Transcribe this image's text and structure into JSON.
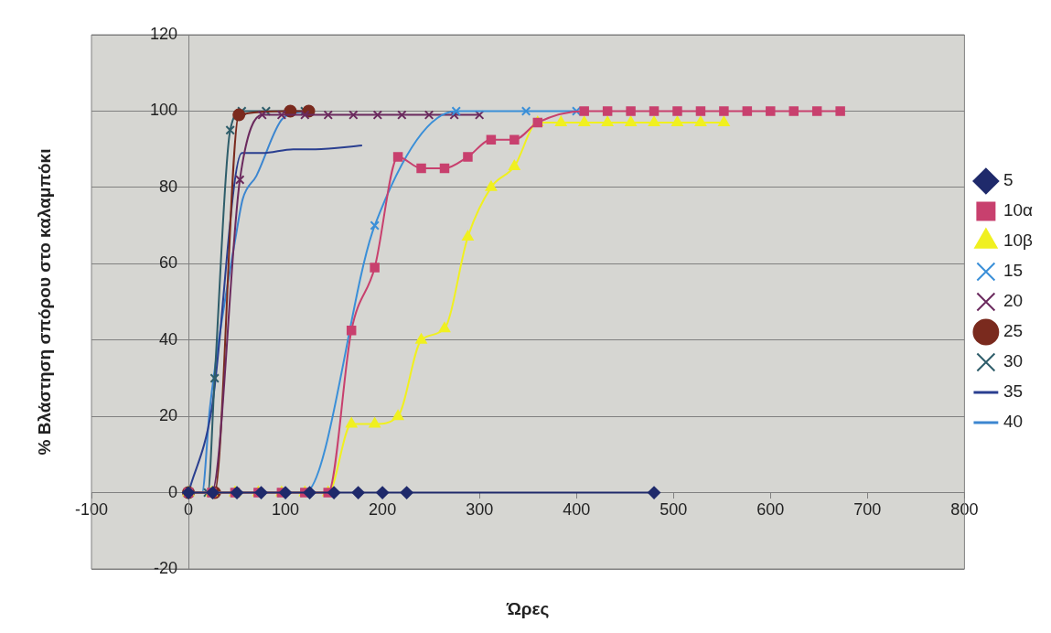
{
  "chart_data": {
    "type": "line",
    "xlabel": "Ώρες",
    "ylabel": "% Βλάστηση σπόρου στο καλαμπόκι",
    "xlim": [
      -100,
      800
    ],
    "xticks": [
      -100,
      0,
      100,
      200,
      300,
      400,
      500,
      600,
      700,
      800
    ],
    "ylim": [
      -20,
      120
    ],
    "yticks": [
      -20,
      0,
      20,
      40,
      60,
      80,
      100,
      120
    ],
    "grid": "y",
    "legend": "right",
    "series": [
      {
        "name": "5",
        "color": "#1f2a6b",
        "marker": "diamond",
        "x": [
          0,
          25,
          50,
          75,
          100,
          125,
          150,
          175,
          200,
          225,
          480
        ],
        "values": [
          0,
          0,
          0,
          0,
          0,
          0,
          0,
          0,
          0,
          0,
          0
        ]
      },
      {
        "name": "10α",
        "color": "#c8406e",
        "marker": "square",
        "x": [
          0,
          24,
          48,
          72,
          96,
          120,
          144,
          168,
          192,
          216,
          240,
          264,
          288,
          312,
          336,
          360,
          408,
          432,
          456,
          480,
          504,
          528,
          552,
          576,
          600,
          624,
          648,
          672
        ],
        "values": [
          0,
          0,
          0,
          0,
          0,
          0,
          0,
          42.5,
          59,
          88,
          85,
          85,
          88,
          92.5,
          92.5,
          97,
          100,
          100,
          100,
          100,
          100,
          100,
          100,
          100,
          100,
          100,
          100,
          100
        ]
      },
      {
        "name": "10β",
        "color": "#f0f020",
        "marker": "triangle",
        "x": [
          0,
          24,
          48,
          72,
          96,
          120,
          144,
          168,
          192,
          216,
          240,
          264,
          288,
          312,
          336,
          360,
          384,
          408,
          432,
          456,
          480,
          504,
          528,
          552
        ],
        "values": [
          0,
          0,
          0,
          0,
          0,
          0,
          0,
          18,
          18,
          20,
          40,
          43,
          67,
          80,
          85.5,
          97,
          97,
          97,
          97,
          97,
          97,
          97,
          97,
          97
        ]
      },
      {
        "name": "15",
        "color": "#3a8fd8",
        "marker": "cross",
        "x": [
          0,
          24,
          48,
          72,
          96,
          120,
          192,
          276,
          348,
          400
        ],
        "values": [
          0,
          0,
          0,
          0,
          0,
          0,
          70,
          100,
          100,
          100
        ]
      },
      {
        "name": "20",
        "color": "#6b2a5e",
        "marker": "cross",
        "x": [
          0,
          24,
          53,
          76,
          96,
          120,
          144,
          170,
          195,
          220,
          248,
          274,
          300
        ],
        "values": [
          0,
          0,
          82,
          99,
          99,
          99,
          99,
          99,
          99,
          99,
          99,
          99,
          99
        ]
      },
      {
        "name": "25",
        "color": "#7a2a1e",
        "marker": "circle",
        "x": [
          0,
          27,
          52,
          105,
          124
        ],
        "values": [
          0,
          0,
          99,
          100,
          100
        ]
      },
      {
        "name": "30",
        "color": "#2e5d6a",
        "marker": "cross",
        "x": [
          0,
          20,
          27,
          43,
          55,
          80,
          120
        ],
        "values": [
          0,
          0,
          30,
          95,
          100,
          100,
          100
        ]
      },
      {
        "name": "35",
        "color": "#2a3f90",
        "marker": "none",
        "x": [
          0,
          24,
          55,
          76,
          108,
          131,
          179
        ],
        "values": [
          0,
          22,
          89,
          89,
          90,
          90,
          91
        ]
      },
      {
        "name": "40",
        "color": "#3c86d0",
        "marker": "none",
        "x": [
          0,
          14,
          22,
          50,
          56,
          70,
          97,
          120
        ],
        "values": [
          0,
          0,
          22,
          69,
          77,
          83,
          98,
          100
        ]
      }
    ]
  }
}
